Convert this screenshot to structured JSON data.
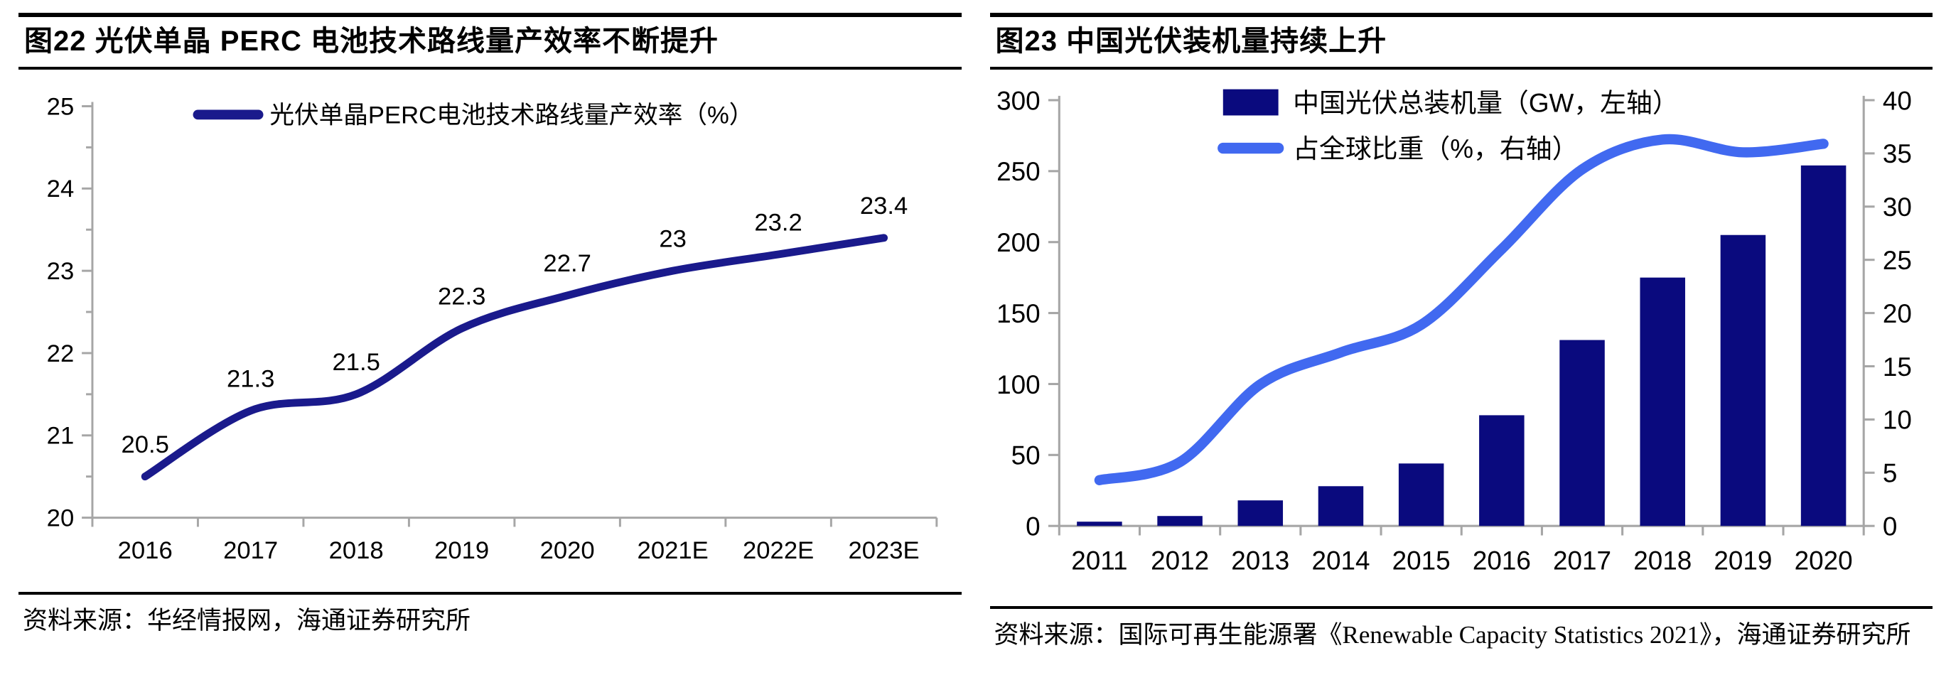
{
  "left_panel": {
    "source": "资料来源：华经情报网，海通证券研究所"
  },
  "right_panel": {
    "source": "资料来源：国际可再生能源署《Renewable Capacity Statistics 2021》，海通证券研究所"
  },
  "colors": {
    "navy_line": "#1A1A8C",
    "navy_bar": "#0A0A7E",
    "blue_line": "#4169F0",
    "axis_gray": "#A6A6A6",
    "text_black": "#000000"
  },
  "chart_data": [
    {
      "type": "line",
      "title": "图22 光伏单晶 PERC 电池技术路线量产效率不断提升",
      "categories": [
        "2016",
        "2017",
        "2018",
        "2019",
        "2020",
        "2021E",
        "2022E",
        "2023E"
      ],
      "series": [
        {
          "name": "光伏单晶PERC电池技术路线量产效率（%）",
          "values": [
            20.5,
            21.3,
            21.5,
            22.3,
            22.7,
            23,
            23.2,
            23.4
          ],
          "labels": [
            "20.5",
            "21.3",
            "21.5",
            "22.3",
            "22.7",
            "23",
            "23.2",
            "23.4"
          ],
          "color": "#1A1A8C"
        }
      ],
      "ylim": [
        20,
        25
      ],
      "ytick_major": 1,
      "ytick_minor": 0.5,
      "grid": false,
      "legend_position": "top-center"
    },
    {
      "type": "bar+line",
      "title": "图23 中国光伏装机量持续上升",
      "categories": [
        "2011",
        "2012",
        "2013",
        "2014",
        "2015",
        "2016",
        "2017",
        "2018",
        "2019",
        "2020"
      ],
      "series": [
        {
          "name": "中国光伏总装机量（GW，左轴）",
          "type": "bar",
          "axis": "left",
          "values": [
            3,
            7,
            18,
            28,
            44,
            78,
            131,
            175,
            205,
            254
          ],
          "color": "#0A0A7E"
        },
        {
          "name": "占全球比重（%，右轴）",
          "type": "line",
          "axis": "right",
          "values": [
            4.3,
            6.0,
            13.3,
            16.3,
            18.9,
            26.0,
            33.5,
            36.3,
            35.1,
            35.9
          ],
          "color": "#4169F0"
        }
      ],
      "ylim_left": [
        0,
        300
      ],
      "ytick_left": 50,
      "ylim_right": [
        0,
        40
      ],
      "ytick_right": 5,
      "grid": false,
      "legend_position": "top"
    }
  ]
}
